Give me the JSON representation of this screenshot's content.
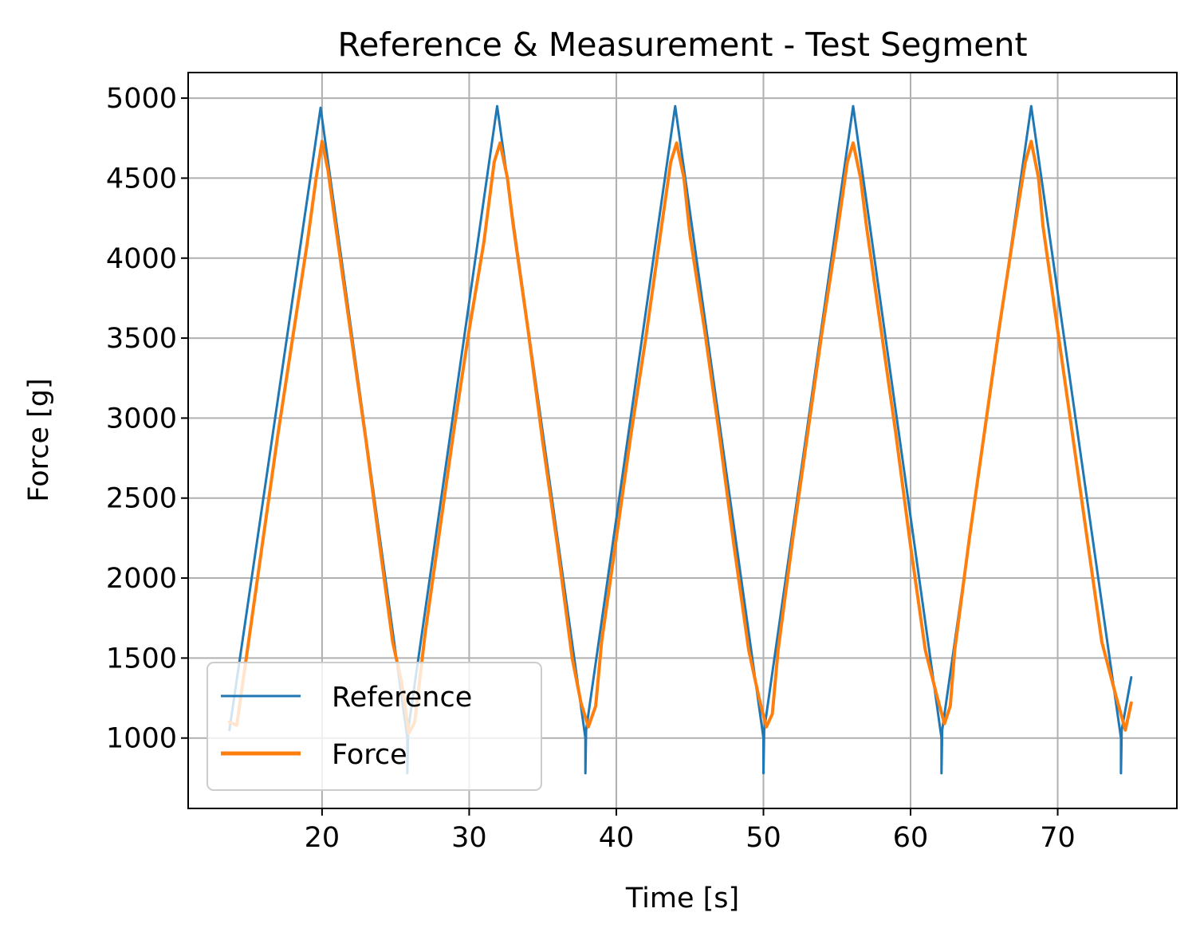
{
  "chart_data": {
    "type": "line",
    "title": "Reference & Measurement - Test Segment",
    "xlabel": "Time [s]",
    "ylabel": "Force [g]",
    "xlim": [
      10.9,
      78.1
    ],
    "ylim": [
      560,
      5160
    ],
    "xticks": [
      20,
      30,
      40,
      50,
      60,
      70
    ],
    "yticks": [
      1000,
      1500,
      2000,
      2500,
      3000,
      3500,
      4000,
      4500,
      5000
    ],
    "grid": true,
    "legend_position": "lower-left",
    "series": [
      {
        "name": "Reference",
        "color": "#1f77b4",
        "x": [
          13.7,
          19.9,
          25.8,
          25.8,
          25.85,
          31.9,
          37.9,
          37.9,
          37.95,
          44.0,
          50.0,
          50.0,
          50.05,
          56.1,
          62.1,
          62.1,
          62.15,
          68.2,
          74.3,
          74.3,
          74.35,
          75.0
        ],
        "y": [
          1050,
          4940,
          1000,
          780,
          1050,
          4950,
          1000,
          780,
          1050,
          4950,
          1000,
          780,
          1050,
          4950,
          1000,
          780,
          1050,
          4950,
          1000,
          780,
          1050,
          1380
        ]
      },
      {
        "name": "Force",
        "color": "#ff7f0e",
        "x": [
          13.7,
          14.2,
          15.0,
          16.0,
          17.0,
          18.0,
          19.0,
          19.6,
          20.0,
          20.4,
          21.0,
          22.0,
          23.0,
          24.0,
          24.8,
          25.4,
          25.9,
          26.3,
          27.0,
          28.0,
          29.0,
          30.0,
          31.0,
          31.7,
          32.1,
          32.6,
          33.0,
          34.0,
          35.0,
          36.0,
          37.0,
          37.6,
          38.1,
          38.6,
          39.0,
          40.0,
          41.0,
          42.0,
          43.0,
          43.7,
          44.1,
          44.6,
          45.0,
          46.0,
          47.0,
          48.0,
          49.0,
          49.7,
          50.2,
          50.6,
          51.0,
          52.0,
          53.0,
          54.0,
          55.0,
          55.7,
          56.1,
          56.6,
          57.0,
          58.0,
          59.0,
          60.0,
          61.0,
          61.8,
          62.3,
          62.7,
          63.0,
          64.0,
          65.0,
          66.0,
          67.0,
          67.8,
          68.2,
          68.7,
          69.0,
          70.0,
          71.0,
          72.0,
          73.0,
          74.0,
          74.6,
          75.0
        ],
        "y": [
          1100,
          1080,
          1600,
          2250,
          2900,
          3500,
          4100,
          4500,
          4730,
          4550,
          4150,
          3500,
          2850,
          2150,
          1600,
          1350,
          1030,
          1100,
          1650,
          2300,
          2950,
          3550,
          4100,
          4600,
          4720,
          4500,
          4200,
          3550,
          2850,
          2200,
          1500,
          1220,
          1070,
          1200,
          1600,
          2250,
          2900,
          3500,
          4150,
          4600,
          4720,
          4500,
          4150,
          3550,
          2900,
          2200,
          1550,
          1250,
          1070,
          1150,
          1550,
          2250,
          2900,
          3550,
          4150,
          4600,
          4720,
          4500,
          4200,
          3550,
          2900,
          2200,
          1550,
          1260,
          1090,
          1200,
          1550,
          2250,
          2900,
          3550,
          4150,
          4600,
          4730,
          4500,
          4200,
          3550,
          2900,
          2250,
          1600,
          1250,
          1050,
          1220
        ]
      }
    ]
  }
}
